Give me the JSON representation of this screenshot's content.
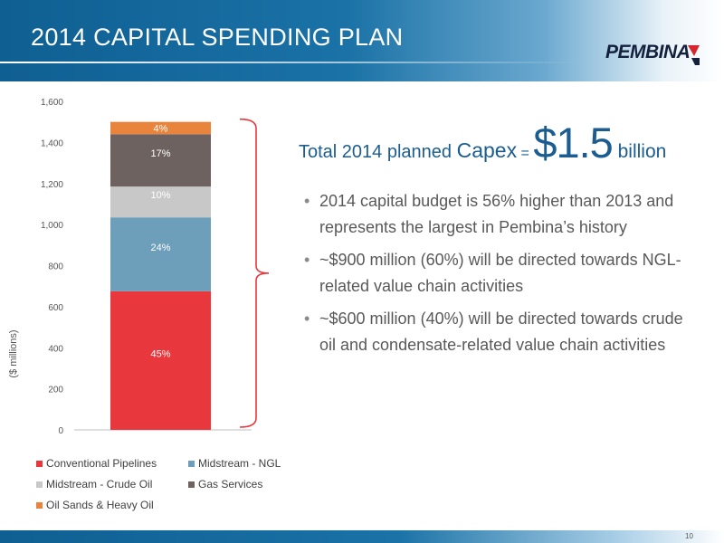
{
  "slide": {
    "title": "2014 CAPITAL SPENDING PLAN",
    "logo_text": "PEMBINA",
    "page_number": "10"
  },
  "total": {
    "part1": "Total 2014 planned ",
    "part2": "Capex",
    "part3": " = ",
    "amount": "$1.5",
    "unit": " billion"
  },
  "bullets": [
    "2014 capital budget is 56% higher than 2013 and represents the largest in Pembina’s history",
    "~$900 million (60%) will be directed towards NGL-related value chain activities",
    "~$600 million (40%) will be directed towards crude oil and condensate-related value chain activities"
  ],
  "chart_data": {
    "type": "bar",
    "stacked": true,
    "categories": [
      ""
    ],
    "ylabel": "($ millions)",
    "ylim": [
      0,
      1600
    ],
    "yticks": [
      0,
      200,
      400,
      600,
      800,
      1000,
      1200,
      1400,
      1600
    ],
    "ytick_labels": [
      "0",
      "200",
      "400",
      "600",
      "800",
      "1,000",
      "1,200",
      "1,400",
      "1,600"
    ],
    "grid": false,
    "legend_position": "bottom",
    "series": [
      {
        "name": "Conventional Pipelines",
        "values": [
          675
        ],
        "label": "45%",
        "color": "#e8383d"
      },
      {
        "name": "Midstream - NGL",
        "values": [
          360
        ],
        "label": "24%",
        "color": "#6d9eba"
      },
      {
        "name": "Midstream - Crude Oil",
        "values": [
          150
        ],
        "label": "10%",
        "color": "#c8c8c8"
      },
      {
        "name": "Gas Services",
        "values": [
          255
        ],
        "label": "17%",
        "color": "#6e6260"
      },
      {
        "name": "Oil Sands & Heavy Oil",
        "values": [
          60
        ],
        "label": "4%",
        "color": "#e8843c"
      }
    ]
  }
}
